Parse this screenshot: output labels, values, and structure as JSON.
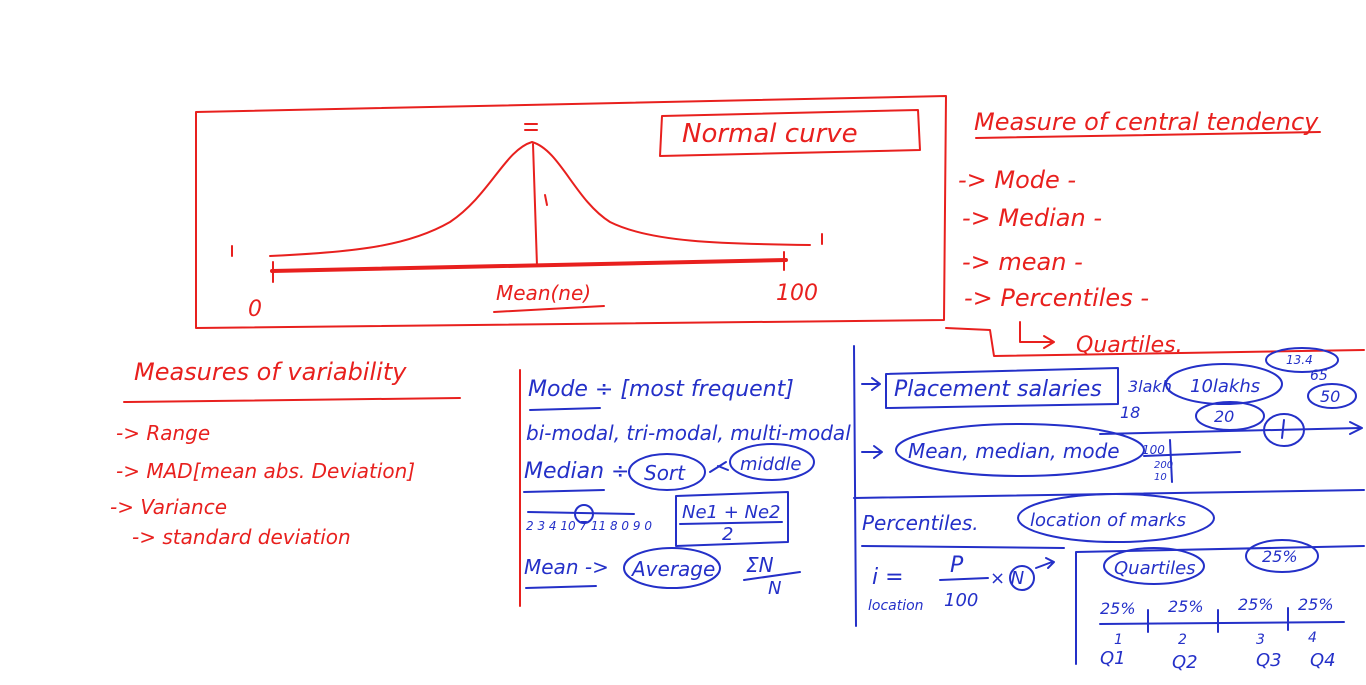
{
  "normal_curve": {
    "title": "Normal curve",
    "axis_start": "0",
    "axis_end": "100",
    "center_label": "Mean(ne)"
  },
  "central_tendency": {
    "title": "Measure of central tendency",
    "items": [
      "-> Mode -",
      "-> Median -",
      "-> mean -",
      "-> Percentiles -"
    ],
    "sub_item": "Quartiles."
  },
  "variability": {
    "title": "Measures of variability",
    "items": [
      "-> Range",
      "-> MAD[mean abs. Deviation]",
      "-> Variance"
    ],
    "sub_item": "-> standard deviation"
  },
  "center_notes": {
    "mode_line": "Mode ÷ [most frequent]",
    "modal_line": "bi-modal, tri-modal, multi-modal",
    "median_label": "Median ÷",
    "sort_label": "Sort",
    "middle_label": "middle",
    "number_sequence": "2 3 4 10 7 11 8 0 9 0",
    "median_formula_num": "Ne1 + Ne2",
    "median_formula_den": "2",
    "mean_label": "Mean ->",
    "average_label": "Average",
    "sum_num": "ΣN",
    "sum_den": "N"
  },
  "right_notes": {
    "placement": "Placement salaries",
    "three_lakh": "3lakh",
    "ten_lakh": "10lakhs",
    "eighteen": "18",
    "twenty": "20",
    "small_top": "13.4",
    "sixty_five": "65",
    "fifty": "50",
    "mean_median_mode": "Mean, median, mode",
    "hundred": "100",
    "two_hundred": "200",
    "ten": "10",
    "percentiles": "Percentiles.",
    "location": "location of marks",
    "i_eq": "i =",
    "location_word": "location",
    "p": "P",
    "hundred_den": "100",
    "times_n": "× N",
    "quartiles": "Quartiles",
    "twenty_five": "25%",
    "segments": [
      "25%",
      "25%",
      "25%",
      "25%"
    ],
    "ticks": [
      "1",
      "2",
      "3",
      "4"
    ],
    "q_labels": [
      "Q1",
      "Q2",
      "Q3",
      "Q4"
    ]
  }
}
